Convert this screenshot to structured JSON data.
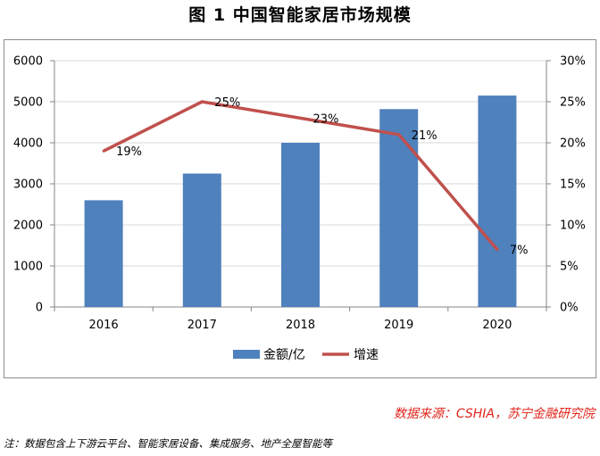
{
  "title": "图 1  中国智能家居市场规模",
  "source": "数据来源：CSHIA，苏宁金融研究院",
  "note": "注：数据包含上下游云平台、智能家居设备、集成服务、地产全屋智能等",
  "colors": {
    "bar": "#4f81bd",
    "line": "#c0504d",
    "grid": "#d9d9d9",
    "source_text": "#e0251b"
  },
  "chart_data": {
    "type": "bar",
    "title": "图 1  中国智能家居市场规模",
    "categories": [
      "2016",
      "2017",
      "2018",
      "2019",
      "2020"
    ],
    "series": [
      {
        "name": "金额/亿",
        "type": "bar",
        "axis": "left",
        "values": [
          2600,
          3250,
          4000,
          4820,
          5150
        ]
      },
      {
        "name": "增速",
        "type": "line",
        "axis": "right",
        "values": [
          19,
          25,
          23,
          21,
          7
        ],
        "labels": [
          "19%",
          "25%",
          "23%",
          "21%",
          "7%"
        ]
      }
    ],
    "y_left": {
      "min": 0,
      "max": 6000,
      "ticks": [
        0,
        1000,
        2000,
        3000,
        4000,
        5000,
        6000
      ],
      "tick_labels": [
        "0",
        "1000",
        "2000",
        "3000",
        "4000",
        "5000",
        "6000"
      ]
    },
    "y_right": {
      "min": 0,
      "max": 30,
      "ticks": [
        0,
        5,
        10,
        15,
        20,
        25,
        30
      ],
      "tick_labels": [
        "0%",
        "5%",
        "10%",
        "15%",
        "20%",
        "25%",
        "30%"
      ]
    },
    "grid": true,
    "legend": {
      "position": "bottom",
      "items": [
        "金额/亿",
        "增速"
      ]
    }
  }
}
